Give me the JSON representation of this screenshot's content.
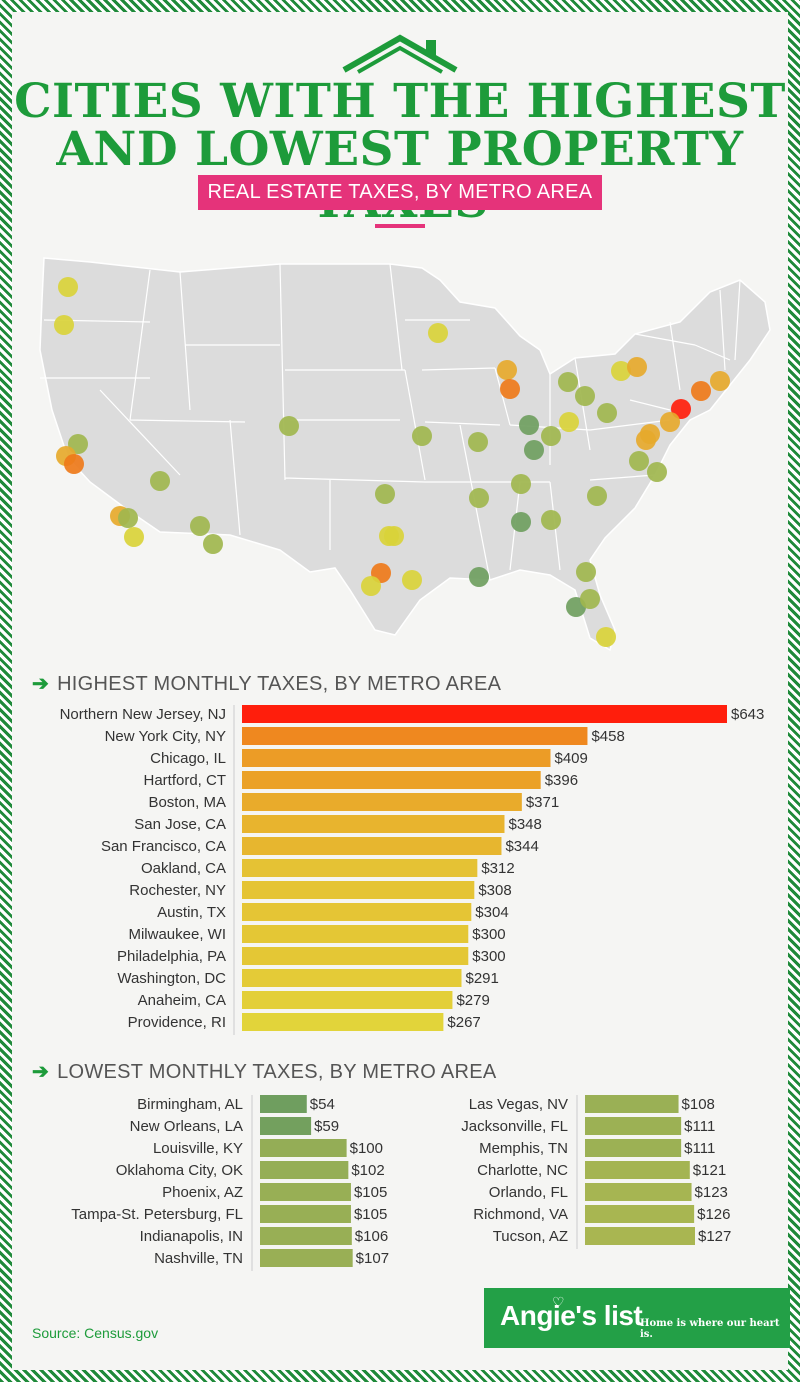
{
  "header": {
    "title_line1": "CITIES WITH THE HIGHEST",
    "title_line2": "AND LOWEST PROPERTY TAXES",
    "subtitle": "REAL ESTATE TAXES, BY METRO AREA"
  },
  "colors": {
    "brand_green": "#1d9b3a",
    "accent_pink": "#e5337a",
    "map_fill": "#dcdcdc",
    "scale": [
      "#6f9e5f",
      "#9fb64e",
      "#d9d33a",
      "#e6a92c",
      "#ee7a1a",
      "#ff1e0c"
    ]
  },
  "chart_data": [
    {
      "type": "bar",
      "orientation": "horizontal",
      "title": "HIGHEST MONTHLY TAXES, BY METRO AREA",
      "categories": [
        "Northern New Jersey, NJ",
        "New York City, NY",
        "Chicago, IL",
        "Hartford, CT",
        "Boston, MA",
        "San Jose, CA",
        "San Francisco, CA",
        "Oakland, CA",
        "Rochester, NY",
        "Austin, TX",
        "Milwaukee, WI",
        "Philadelphia, PA",
        "Washington, DC",
        "Anaheim, CA",
        "Providence, RI"
      ],
      "values": [
        643,
        458,
        409,
        396,
        371,
        348,
        344,
        312,
        308,
        304,
        300,
        300,
        291,
        279,
        267
      ],
      "labels": [
        "$643",
        "$458",
        "$409",
        "$396",
        "$371",
        "$348",
        "$344",
        "$312",
        "$308",
        "$304",
        "$300",
        "$300",
        "$291",
        "$279",
        "$267"
      ],
      "xlim": [
        0,
        643
      ]
    },
    {
      "type": "bar",
      "orientation": "horizontal",
      "title": "LOWEST MONTHLY TAXES, BY METRO AREA",
      "categories": [
        "Birmingham, AL",
        "New Orleans, LA",
        "Louisville, KY",
        "Oklahoma City, OK",
        "Phoenix, AZ",
        "Tampa-St. Petersburg, FL",
        "Indianapolis, IN",
        "Nashville, TN",
        "Las Vegas, NV",
        "Jacksonville, FL",
        "Memphis, TN",
        "Charlotte, NC",
        "Orlando, FL",
        "Richmond, VA",
        "Tucson, AZ"
      ],
      "values": [
        54,
        59,
        100,
        102,
        105,
        105,
        106,
        107,
        108,
        111,
        111,
        121,
        123,
        126,
        127
      ],
      "labels": [
        "$54",
        "$59",
        "$100",
        "$102",
        "$105",
        "$105",
        "$106",
        "$107",
        "$108",
        "$111",
        "$111",
        "$121",
        "$123",
        "$126",
        "$127"
      ],
      "xlim": [
        0,
        127
      ]
    }
  ],
  "footer": {
    "source": "Source: Census.gov",
    "brand": "Angie's list",
    "tagline": "Home is where our heart is."
  }
}
